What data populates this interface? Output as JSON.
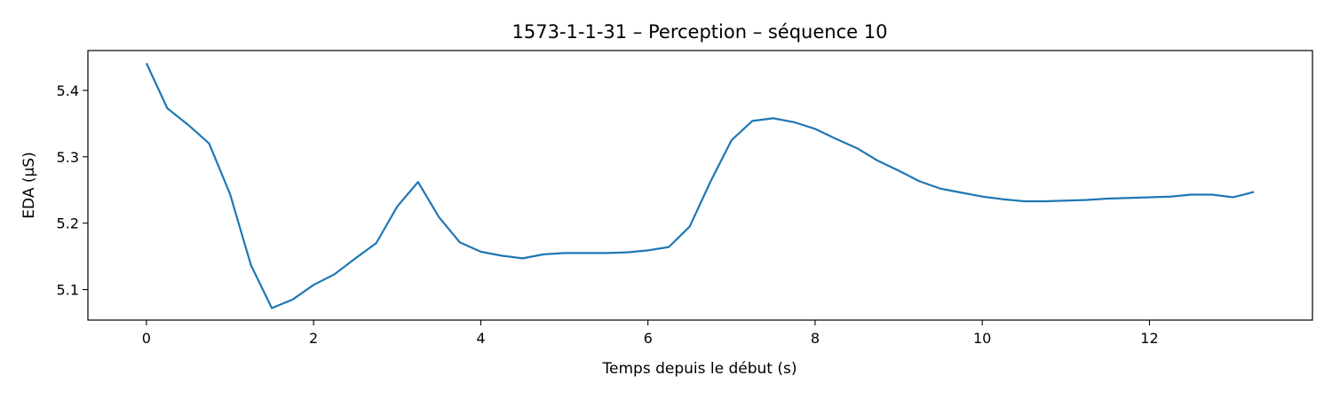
{
  "chart_data": {
    "type": "line",
    "title": "1573-1-1-31 – Perception – séquence 10",
    "xlabel": "Temps depuis le début (s)",
    "ylabel": "EDA (µS)",
    "xlim": [
      -0.7,
      13.95
    ],
    "ylim": [
      5.054,
      5.46
    ],
    "xticks": [
      0,
      2,
      4,
      6,
      8,
      10,
      12
    ],
    "xtick_labels": [
      "0",
      "2",
      "4",
      "6",
      "8",
      "10",
      "12"
    ],
    "yticks": [
      5.1,
      5.2,
      5.3,
      5.4
    ],
    "ytick_labels": [
      "5.1",
      "5.2",
      "5.3",
      "5.4"
    ],
    "grid": false,
    "legend": "none",
    "series": [
      {
        "color": "#1f77b4",
        "x": [
          0,
          0.25,
          0.5,
          0.75,
          1.0,
          1.25,
          1.5,
          1.75,
          2.0,
          2.25,
          2.5,
          2.75,
          3.0,
          3.25,
          3.5,
          3.75,
          4.0,
          4.25,
          4.5,
          4.75,
          5.0,
          5.25,
          5.5,
          5.75,
          6.0,
          6.25,
          6.5,
          6.75,
          7.0,
          7.25,
          7.5,
          7.75,
          8.0,
          8.25,
          8.5,
          8.75,
          9.0,
          9.25,
          9.5,
          9.75,
          10.0,
          10.25,
          10.5,
          10.75,
          11.0,
          11.25,
          11.5,
          11.75,
          12.0,
          12.25,
          12.5,
          12.75,
          13.0,
          13.25
        ],
        "y": [
          5.441,
          5.373,
          5.348,
          5.32,
          5.244,
          5.137,
          5.072,
          5.085,
          5.107,
          5.123,
          5.147,
          5.17,
          5.225,
          5.262,
          5.209,
          5.171,
          5.157,
          5.151,
          5.147,
          5.153,
          5.155,
          5.155,
          5.155,
          5.156,
          5.159,
          5.164,
          5.195,
          5.263,
          5.325,
          5.354,
          5.358,
          5.352,
          5.342,
          5.327,
          5.313,
          5.294,
          5.279,
          5.263,
          5.252,
          5.246,
          5.24,
          5.236,
          5.233,
          5.233,
          5.234,
          5.235,
          5.237,
          5.238,
          5.239,
          5.24,
          5.243,
          5.243,
          5.239,
          5.247
        ]
      }
    ]
  }
}
